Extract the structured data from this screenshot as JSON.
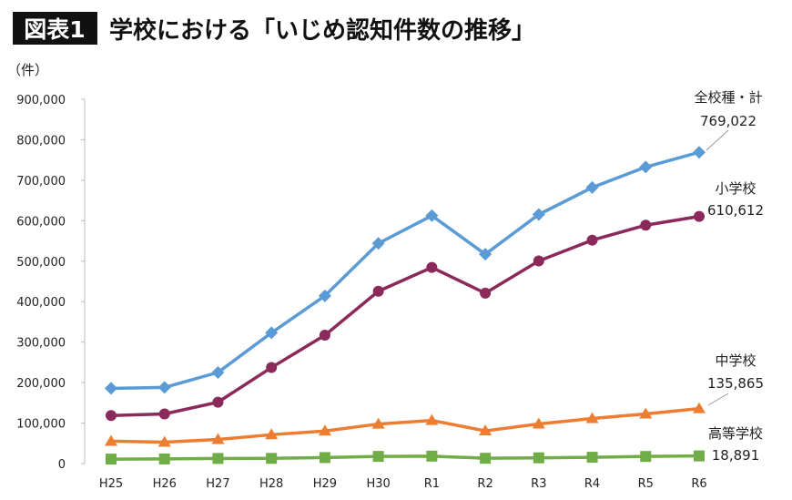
{
  "header": {
    "badge": "図表1",
    "title": "学校における「いじめ認知件数の推移」"
  },
  "chart_data": {
    "type": "line",
    "title": "学校における「いじめ認知件数の推移」",
    "ylabel": "（件）",
    "xlabel": "",
    "ylim": [
      0,
      900000
    ],
    "yticks": [
      0,
      100000,
      200000,
      300000,
      400000,
      500000,
      600000,
      700000,
      800000,
      900000
    ],
    "ytick_labels": [
      "0",
      "100,000",
      "200,000",
      "300,000",
      "400,000",
      "500,000",
      "600,000",
      "700,000",
      "800,000",
      "900,000"
    ],
    "grid": false,
    "categories": [
      "H25",
      "H26",
      "H27",
      "H28",
      "H29",
      "H30",
      "R1",
      "R2",
      "R3",
      "R4",
      "R5",
      "R6"
    ],
    "series": [
      {
        "name": "全校種・計",
        "end_label": "769,022",
        "color": "#5b9bd5",
        "marker": "diamond",
        "values": [
          185803,
          188072,
          225132,
          323143,
          414378,
          543933,
          612496,
          517163,
          615351,
          681948,
          732568,
          769022
        ]
      },
      {
        "name": "小学校",
        "end_label": "610,612",
        "color": "#8b2a5a",
        "marker": "circle",
        "values": [
          118748,
          122734,
          151692,
          237256,
          317121,
          425844,
          484545,
          420897,
          500562,
          551944,
          588930,
          610612
        ]
      },
      {
        "name": "中学校",
        "end_label": "135,865",
        "color": "#ed7d31",
        "marker": "triangle",
        "values": [
          55248,
          52971,
          59502,
          71309,
          80424,
          97704,
          106524,
          80877,
          97937,
          111404,
          122703,
          135865
        ]
      },
      {
        "name": "高等学校",
        "end_label": "18,891",
        "color": "#70ad47",
        "marker": "square",
        "values": [
          11039,
          11404,
          12664,
          12874,
          14789,
          17709,
          18352,
          13126,
          14157,
          15568,
          17611,
          18891
        ]
      }
    ]
  }
}
